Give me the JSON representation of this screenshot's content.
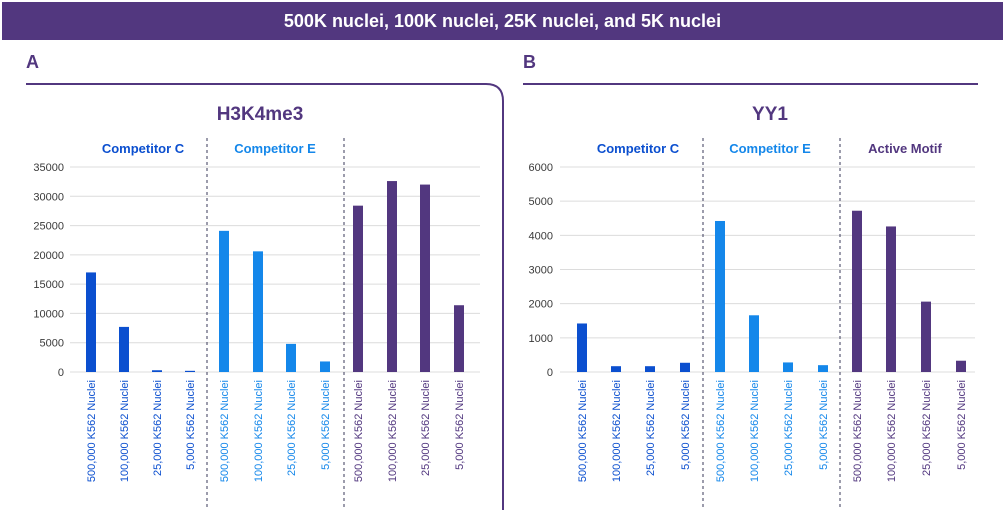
{
  "banner": {
    "title": "500K nuclei, 100K nuclei, 25K nuclei, and 5K nuclei"
  },
  "panels": {
    "a": {
      "letter": "A"
    },
    "b": {
      "letter": "B"
    }
  },
  "colors": {
    "competitor_c": "#0b4fcf",
    "competitor_e": "#1487ea",
    "active_motif": "#52377f",
    "axis_text": "#3a3a3a",
    "grid": "#dcdcdc"
  },
  "chart_data": [
    {
      "type": "bar",
      "title": "H3K4me3",
      "ylim": [
        0,
        35000
      ],
      "yticks": [
        0,
        5000,
        10000,
        15000,
        20000,
        25000,
        30000,
        35000
      ],
      "categories": [
        "500,000 K562 Nuclei",
        "100,000 K562 Nuclei",
        "25,000 K562 Nuclei",
        "5,000 K562 Nuclei"
      ],
      "grid": true,
      "groups": [
        {
          "name": "Competitor C",
          "values": [
            17000,
            7700,
            300,
            200
          ]
        },
        {
          "name": "Competitor E",
          "values": [
            24100,
            20600,
            4800,
            1800
          ]
        },
        {
          "name": "",
          "values": [
            28400,
            32600,
            32000,
            11400
          ]
        }
      ]
    },
    {
      "type": "bar",
      "title": "YY1",
      "ylim": [
        0,
        6000
      ],
      "yticks": [
        0,
        1000,
        2000,
        3000,
        4000,
        5000,
        6000
      ],
      "categories": [
        "500,000 K562 Nuclei",
        "100,000 K562 Nuclei",
        "25,000 K562 Nuclei",
        "5,000 K562 Nuclei"
      ],
      "grid": true,
      "groups": [
        {
          "name": "Competitor C",
          "values": [
            1420,
            170,
            170,
            270
          ]
        },
        {
          "name": "Competitor E",
          "values": [
            4420,
            1660,
            280,
            200
          ]
        },
        {
          "name": "Active Motif",
          "values": [
            4720,
            4260,
            2060,
            330
          ]
        }
      ]
    }
  ]
}
